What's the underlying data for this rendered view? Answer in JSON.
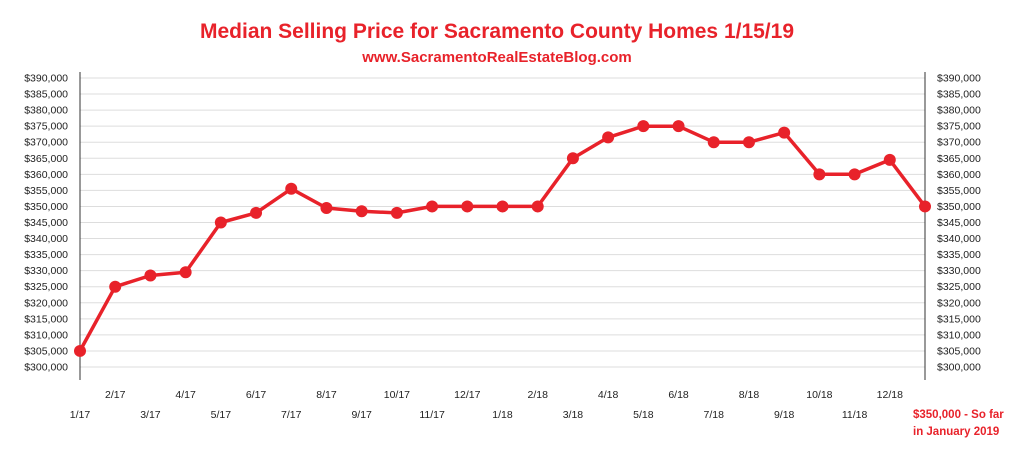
{
  "chart_data": {
    "type": "line",
    "title": "Median Selling Price for Sacramento County Homes 1/15/19",
    "subtitle": "www.SacramentoRealEstateBlog.com",
    "xlabel": "",
    "ylabel": "",
    "categories": [
      "1/17",
      "2/17",
      "3/17",
      "4/17",
      "5/17",
      "6/17",
      "7/17",
      "8/17",
      "9/17",
      "10/17",
      "11/17",
      "12/17",
      "1/18",
      "2/18",
      "3/18",
      "4/18",
      "5/18",
      "6/18",
      "7/18",
      "8/18",
      "9/18",
      "10/18",
      "11/18",
      "12/18",
      "1/19"
    ],
    "x_tick_labels": [
      "1/17",
      "2/17",
      "3/17",
      "4/17",
      "5/17",
      "6/17",
      "7/17",
      "8/17",
      "9/17",
      "10/17",
      "11/17",
      "12/17",
      "1/18",
      "2/18",
      "3/18",
      "4/18",
      "5/18",
      "6/18",
      "7/18",
      "8/18",
      "9/18",
      "10/18",
      "11/18",
      "12/18",
      ""
    ],
    "series": [
      {
        "values": [
          305000,
          325000,
          328500,
          329500,
          345000,
          348000,
          355500,
          349500,
          348500,
          348000,
          350000,
          350000,
          350000,
          350000,
          365000,
          371500,
          375000,
          375000,
          370000,
          370000,
          373000,
          360000,
          360000,
          364500,
          350000
        ]
      }
    ],
    "ylim": [
      300000,
      390000
    ],
    "y_ticks": [
      "$300,000",
      "$305,000",
      "$310,000",
      "$315,000",
      "$320,000",
      "$325,000",
      "$330,000",
      "$335,000",
      "$340,000",
      "$345,000",
      "$350,000",
      "$355,000",
      "$360,000",
      "$365,000",
      "$370,000",
      "$375,000",
      "$380,000",
      "$385,000",
      "$390,000"
    ],
    "y_axis": "both sides",
    "grid": true,
    "legend": "none",
    "annotation": [
      "$350,000 - So far",
      "in January 2019"
    ],
    "colors": {
      "line": "#e8222a",
      "title": "#e8222a",
      "grid": "#dddddd",
      "axis": "#333333"
    }
  }
}
